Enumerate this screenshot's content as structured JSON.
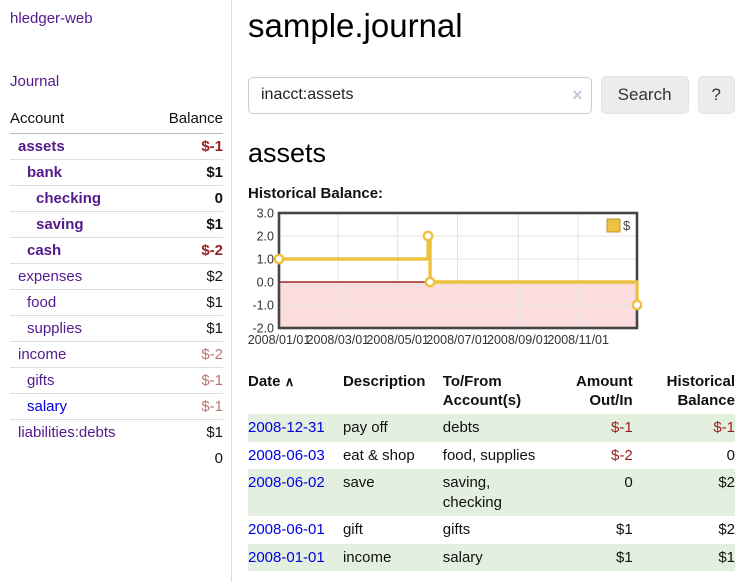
{
  "colors": {
    "purple": "#551A8B",
    "blue": "#0000e0",
    "neg": "#9b1c1c",
    "negmuted": "#bb7474",
    "rowgreen": "#e3f0e0",
    "gold": "#edc240",
    "zeroline": "#8b0000",
    "negfill": "#fbdddd"
  },
  "sidebar": {
    "brand": "hledger-web",
    "nav_label": "Journal",
    "table": {
      "account_header": "Account",
      "balance_header": "Balance",
      "total": "0"
    },
    "accounts": [
      {
        "name": "assets",
        "depth": 1,
        "bold": true,
        "balance": "$-1",
        "balance_style": "neg-strong"
      },
      {
        "name": "bank",
        "depth": 2,
        "bold": true,
        "balance": "$1",
        "balance_style": ""
      },
      {
        "name": "checking",
        "depth": 3,
        "bold": true,
        "balance": "0",
        "balance_style": ""
      },
      {
        "name": "saving",
        "depth": 3,
        "bold": true,
        "balance": "$1",
        "balance_style": ""
      },
      {
        "name": "cash",
        "depth": 2,
        "bold": true,
        "balance": "$-2",
        "balance_style": "neg-strong"
      },
      {
        "name": "expenses",
        "depth": 1,
        "bold": false,
        "balance": "$2",
        "balance_style": ""
      },
      {
        "name": "food",
        "depth": 2,
        "bold": false,
        "balance": "$1",
        "balance_style": ""
      },
      {
        "name": "supplies",
        "depth": 2,
        "bold": false,
        "balance": "$1",
        "balance_style": ""
      },
      {
        "name": "income",
        "depth": 1,
        "bold": false,
        "balance": "$-2",
        "balance_style": "neg-muted"
      },
      {
        "name": "gifts",
        "depth": 2,
        "bold": false,
        "balance": "$-1",
        "balance_style": "neg-muted"
      },
      {
        "name": "salary",
        "depth": 2,
        "bold": false,
        "balance": "$-1",
        "balance_style": "neg-muted",
        "link_style": "blue"
      },
      {
        "name": "liabilities:debts",
        "depth": 1,
        "bold": false,
        "balance": "$1",
        "balance_style": ""
      }
    ]
  },
  "main": {
    "title": "sample.journal",
    "search": {
      "value": "inacct:assets",
      "clear_icon": "×",
      "button_label": "Search",
      "help_label": "?"
    },
    "account_heading": "assets",
    "chart_label": "Historical Balance:"
  },
  "chart_data": {
    "type": "line",
    "title": "Historical Balance",
    "step": true,
    "series": [
      {
        "name": "$",
        "color": "#edc240",
        "points": [
          [
            "2008-01-01",
            1
          ],
          [
            "2008-06-01",
            2
          ],
          [
            "2008-06-03",
            0
          ],
          [
            "2008-12-31",
            -1
          ]
        ]
      }
    ],
    "x_range": [
      "2008-01-01",
      "2008-12-31"
    ],
    "xticks": [
      "2008/01/01",
      "2008/03/01",
      "2008/05/01",
      "2008/07/01",
      "2008/09/01",
      "2008/11/01"
    ],
    "ytick_labels": [
      "3.0",
      "2.0",
      "1.0",
      "0.0",
      "-1.0",
      "-2.0"
    ],
    "yticks": [
      3,
      2,
      1,
      0,
      -1,
      -2
    ],
    "ylim": [
      -2,
      3
    ],
    "grid": true,
    "legend_position": "top-right",
    "zero_line_color": "#8b0000",
    "negative_region_fill": "#fbdddd"
  },
  "register": {
    "headers": {
      "date": "Date",
      "date_sort_icon": "∧",
      "description": "Description",
      "accounts": "To/From Account(s)",
      "amount": "Amount Out/In",
      "balance": "Historical Balance"
    },
    "rows": [
      {
        "date": "2008-12-31",
        "description": "pay off",
        "accounts": "debts",
        "amount": "$-1",
        "amount_neg": true,
        "balance": "$-1",
        "balance_neg": true
      },
      {
        "date": "2008-06-03",
        "description": "eat & shop",
        "accounts": "food, supplies",
        "amount": "$-2",
        "amount_neg": true,
        "balance": "0",
        "balance_neg": false
      },
      {
        "date": "2008-06-02",
        "description": "save",
        "accounts": "saving, checking",
        "amount": "0",
        "amount_neg": false,
        "balance": "$2",
        "balance_neg": false
      },
      {
        "date": "2008-06-01",
        "description": "gift",
        "accounts": "gifts",
        "amount": "$1",
        "amount_neg": false,
        "balance": "$2",
        "balance_neg": false
      },
      {
        "date": "2008-01-01",
        "description": "income",
        "accounts": "salary",
        "amount": "$1",
        "amount_neg": false,
        "balance": "$1",
        "balance_neg": false
      }
    ]
  }
}
